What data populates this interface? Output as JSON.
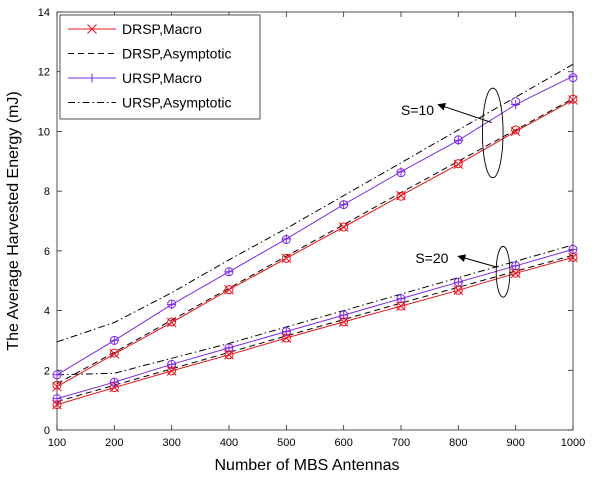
{
  "chart_data": {
    "type": "line",
    "xlabel": "Number of MBS Antennas",
    "ylabel": "The Average Harvested Energy (mJ)",
    "xlim": [
      100,
      1000
    ],
    "ylim": [
      0,
      14
    ],
    "x_ticks": [
      100,
      200,
      300,
      400,
      500,
      600,
      700,
      800,
      900,
      1000
    ],
    "y_ticks": [
      0,
      2,
      4,
      6,
      8,
      10,
      12,
      14
    ],
    "grid": false,
    "legend_position": "top-left",
    "x": [
      100,
      200,
      300,
      400,
      500,
      600,
      700,
      800,
      900,
      1000
    ],
    "legend": [
      {
        "label": "DRSP,Macro",
        "color": "#e8141c",
        "dash": "solid",
        "marker": "x"
      },
      {
        "label": "DRSP,Asymptotic",
        "color": "#000000",
        "dash": "dashed",
        "marker": "none"
      },
      {
        "label": "URSP,Macro",
        "color": "#7b2be2",
        "dash": "solid",
        "marker": "plus"
      },
      {
        "label": "URSP,Asymptotic",
        "color": "#000000",
        "dash": "dashdot",
        "marker": "none"
      }
    ],
    "series": [
      {
        "name": "DRSP,Macro",
        "group": "S=10",
        "color": "#e8141c",
        "dash": "solid",
        "marker": "x",
        "values": [
          1.45,
          2.55,
          3.6,
          4.7,
          5.75,
          6.8,
          7.85,
          8.9,
          10.0,
          11.05
        ]
      },
      {
        "name": "DRSP,Asymptotic",
        "group": "S=10",
        "color": "#000000",
        "dash": "dashed",
        "marker": "none",
        "values": [
          1.55,
          2.6,
          3.68,
          4.75,
          5.82,
          6.88,
          7.95,
          9.0,
          10.05,
          11.1
        ]
      },
      {
        "name": "URSP,Macro",
        "group": "S=10",
        "color": "#7b2be2",
        "dash": "solid",
        "marker": "plus",
        "values": [
          1.85,
          3.0,
          4.2,
          5.3,
          6.4,
          7.55,
          8.65,
          9.7,
          10.9,
          11.85
        ]
      },
      {
        "name": "URSP,Asymptotic",
        "group": "S=10",
        "color": "#000000",
        "dash": "dashdot",
        "marker": "none",
        "values": [
          2.95,
          3.6,
          4.6,
          5.7,
          6.75,
          7.85,
          8.95,
          10.05,
          11.15,
          12.25
        ]
      },
      {
        "name": "DRSP,Macro",
        "group": "S=20",
        "color": "#e8141c",
        "dash": "solid",
        "marker": "x",
        "values": [
          0.85,
          1.42,
          1.98,
          2.52,
          3.08,
          3.62,
          4.15,
          4.68,
          5.25,
          5.78
        ]
      },
      {
        "name": "DRSP,Asymptotic",
        "group": "S=20",
        "color": "#000000",
        "dash": "dashed",
        "marker": "none",
        "values": [
          0.95,
          1.5,
          2.05,
          2.6,
          3.15,
          3.7,
          4.25,
          4.78,
          5.32,
          5.85
        ]
      },
      {
        "name": "URSP,Macro",
        "group": "S=20",
        "color": "#7b2be2",
        "dash": "solid",
        "marker": "plus",
        "values": [
          1.05,
          1.6,
          2.2,
          2.75,
          3.3,
          3.85,
          4.4,
          4.95,
          5.5,
          6.05
        ]
      },
      {
        "name": "URSP,Asymptotic",
        "group": "S=20",
        "color": "#000000",
        "dash": "dashdot",
        "marker": "none",
        "values": [
          1.85,
          1.9,
          2.4,
          2.9,
          3.45,
          4.0,
          4.55,
          5.1,
          5.65,
          6.2
        ]
      }
    ],
    "circle_markers": [
      {
        "group": "S=10",
        "color": "#7b2be2",
        "points": [
          [
            100,
            1.85
          ],
          [
            200,
            3.0
          ],
          [
            300,
            4.22
          ],
          [
            400,
            5.3
          ],
          [
            500,
            6.38
          ],
          [
            600,
            7.55
          ],
          [
            700,
            8.62
          ],
          [
            800,
            9.72
          ],
          [
            900,
            11.0
          ],
          [
            1000,
            11.8
          ]
        ]
      },
      {
        "group": "S=10",
        "color": "#e8141c",
        "points": [
          [
            100,
            1.5
          ],
          [
            200,
            2.58
          ],
          [
            300,
            3.62
          ],
          [
            400,
            4.7
          ],
          [
            500,
            5.75
          ],
          [
            600,
            6.8
          ],
          [
            700,
            7.83
          ],
          [
            800,
            8.92
          ],
          [
            900,
            10.05
          ],
          [
            1000,
            11.08
          ]
        ]
      },
      {
        "group": "S=20",
        "color": "#7b2be2",
        "points": [
          [
            100,
            1.05
          ],
          [
            200,
            1.6
          ],
          [
            300,
            2.2
          ],
          [
            400,
            2.75
          ],
          [
            500,
            3.3
          ],
          [
            600,
            3.85
          ],
          [
            700,
            4.4
          ],
          [
            800,
            4.95
          ],
          [
            900,
            5.5
          ],
          [
            1000,
            6.05
          ]
        ]
      },
      {
        "group": "S=20",
        "color": "#e8141c",
        "points": [
          [
            100,
            0.85
          ],
          [
            200,
            1.42
          ],
          [
            300,
            1.98
          ],
          [
            400,
            2.52
          ],
          [
            500,
            3.08
          ],
          [
            600,
            3.62
          ],
          [
            700,
            4.15
          ],
          [
            800,
            4.68
          ],
          [
            900,
            5.25
          ],
          [
            1000,
            5.78
          ]
        ]
      }
    ],
    "annotations": [
      {
        "text": "S=10",
        "arrow_from": [
          858,
          10.3
        ],
        "arrow_to": [
          765,
          10.9
        ],
        "text_at": [
          700,
          10.55
        ],
        "ellipse_center": [
          860,
          9.95
        ],
        "ellipse_rx": 18,
        "ellipse_ry": 1.5
      },
      {
        "text": "S=20",
        "arrow_from": [
          868,
          5.45
        ],
        "arrow_to": [
          800,
          5.82
        ],
        "text_at": [
          725,
          5.6
        ],
        "ellipse_center": [
          878,
          5.3
        ],
        "ellipse_rx": 12,
        "ellipse_ry": 0.85
      }
    ]
  }
}
